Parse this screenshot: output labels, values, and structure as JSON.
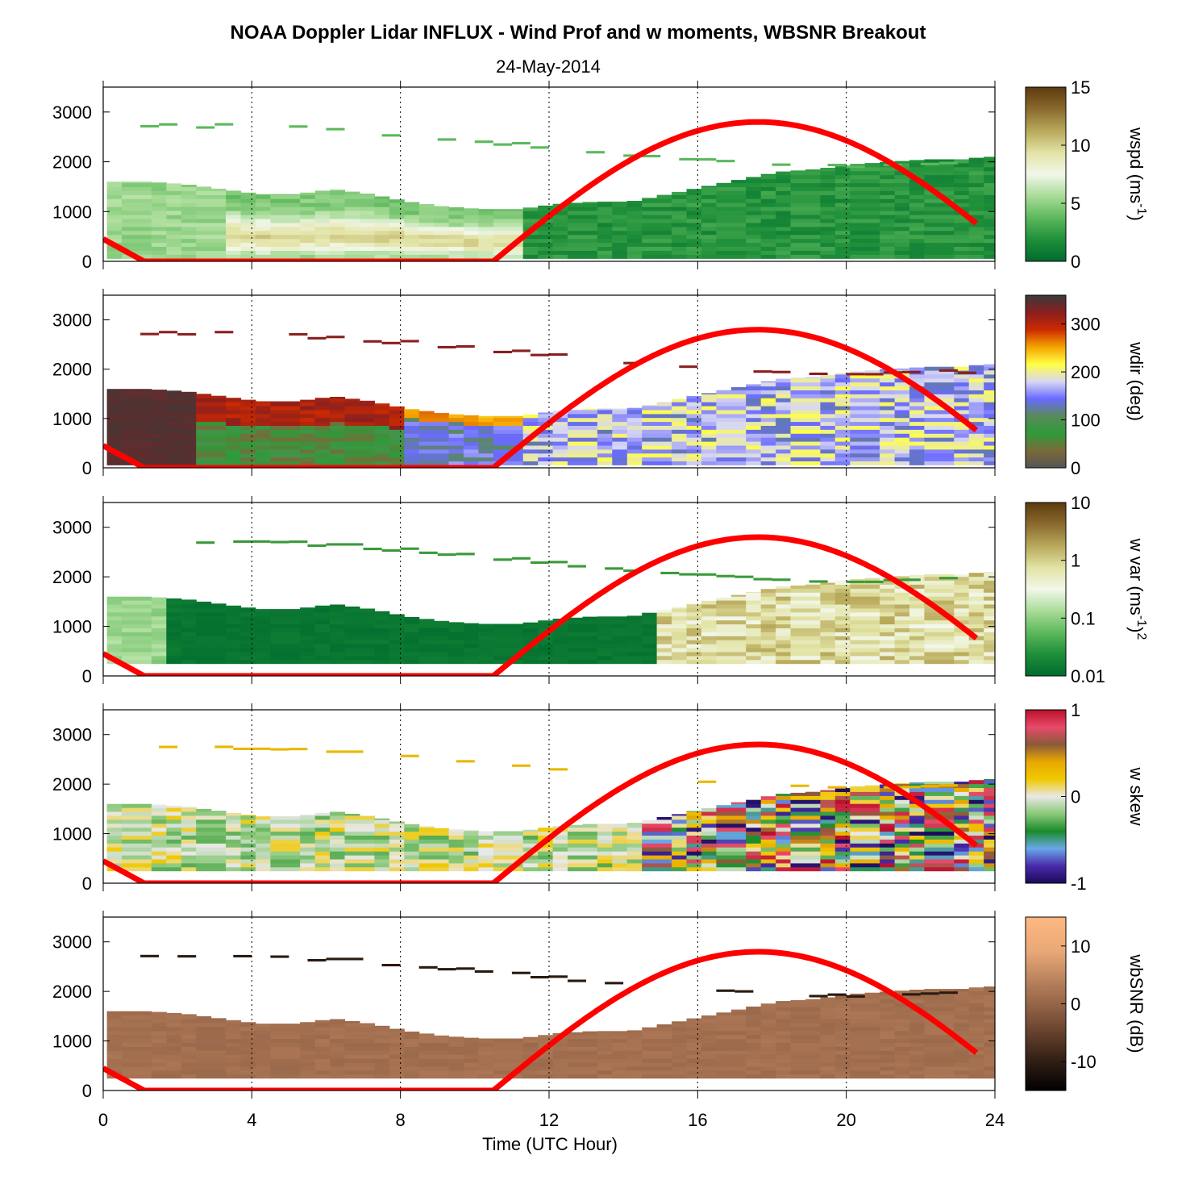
{
  "title": "NOAA Doppler Lidar INFLUX - Wind Prof and w moments, WBSNR Breakout",
  "subtitle": "24-May-2014",
  "xlabel": "Time (UTC Hour)",
  "colors": {
    "sun_curve": "#ff0000",
    "frame": "#000000",
    "grid": "#000000"
  },
  "chart_data": [
    {
      "type": "heatmap",
      "variable": "wspd",
      "colorbar_label": "wspd (ms-1)",
      "colorbar_label_parts": {
        "pre": "wspd (ms",
        "sup": "-1",
        "post": ")"
      },
      "colorbar_ticks": [
        "15",
        "10",
        "5",
        "0"
      ],
      "clim": [
        0,
        15
      ],
      "colormap": [
        "#006b2e",
        "#1f8f3a",
        "#5cb85c",
        "#a9dc98",
        "#f2f7ea",
        "#e2e3a4",
        "#b8a85a",
        "#8a6a2e",
        "#5c3a0d"
      ],
      "x": [
        0,
        1,
        2,
        3,
        4,
        5,
        6,
        7,
        8,
        9,
        10,
        11,
        12,
        13,
        14,
        15,
        16,
        17,
        18,
        19,
        20,
        21,
        22,
        23,
        23.5
      ],
      "boundary_layer_top_m": [
        1600,
        1600,
        1550,
        1450,
        1350,
        1350,
        1450,
        1350,
        1200,
        1100,
        1050,
        1050,
        1150,
        1200,
        1200,
        1350,
        1500,
        1650,
        1800,
        1850,
        1950,
        2000,
        2050,
        2050,
        2100
      ],
      "xlim": [
        0,
        24
      ],
      "ylim": [
        0,
        3500
      ],
      "xticks": [
        "0",
        "4",
        "8",
        "12",
        "16",
        "20",
        "24"
      ],
      "yticks": [
        "0",
        "1000",
        "2000",
        "3000"
      ],
      "sun_elevation_curve": true
    },
    {
      "type": "heatmap",
      "variable": "wdir",
      "colorbar_label": "wdir (deg)",
      "colorbar_ticks": [
        "300",
        "200",
        "100",
        "0"
      ],
      "clim": [
        0,
        360
      ],
      "colormap": [
        "#555555",
        "#7a6a3a",
        "#2f9a3a",
        "#5a8a5a",
        "#6a6aff",
        "#d8d8f2",
        "#ffff44",
        "#f4a400",
        "#cc2a00",
        "#8a1f1f",
        "#3a3a3a"
      ],
      "x": [
        0,
        1,
        2,
        3,
        4,
        5,
        6,
        7,
        8,
        9,
        10,
        11,
        12,
        13,
        14,
        15,
        16,
        17,
        18,
        19,
        20,
        21,
        22,
        23,
        23.5
      ],
      "boundary_layer_top_m": [
        1600,
        1600,
        1550,
        1450,
        1350,
        1350,
        1450,
        1350,
        1200,
        1100,
        1050,
        1050,
        1150,
        1200,
        1200,
        1350,
        1500,
        1650,
        1800,
        1850,
        1950,
        2000,
        2050,
        2050,
        2100
      ],
      "xlim": [
        0,
        24
      ],
      "ylim": [
        0,
        3500
      ],
      "xticks": [
        "0",
        "4",
        "8",
        "12",
        "16",
        "20",
        "24"
      ],
      "yticks": [
        "0",
        "1000",
        "2000",
        "3000"
      ],
      "sun_elevation_curve": true
    },
    {
      "type": "heatmap",
      "variable": "w var",
      "colorbar_label": "w var (ms-1)2",
      "colorbar_label_parts": {
        "pre": "w var (ms",
        "sup": "-1",
        "post": ")",
        "sup2": "2"
      },
      "colorbar_ticks": [
        "10",
        "1",
        "0.1",
        "0.01"
      ],
      "clim": [
        0.01,
        10
      ],
      "scale": "log",
      "colormap": [
        "#006b2e",
        "#1f8f3a",
        "#5cb85c",
        "#a9dc98",
        "#f2f7ea",
        "#e2e3a4",
        "#b8a85a",
        "#8a6a2e",
        "#5c3a0d"
      ],
      "x": [
        0,
        1,
        2,
        3,
        4,
        5,
        6,
        7,
        8,
        9,
        10,
        11,
        12,
        13,
        14,
        15,
        16,
        17,
        18,
        19,
        20,
        21,
        22,
        23,
        23.5
      ],
      "boundary_layer_top_m": [
        1600,
        1600,
        1550,
        1450,
        1350,
        1350,
        1450,
        1350,
        1200,
        1100,
        1050,
        1050,
        1150,
        1200,
        1200,
        1350,
        1500,
        1650,
        1800,
        1850,
        1950,
        2000,
        2050,
        2050,
        2100
      ],
      "xlim": [
        0,
        24
      ],
      "ylim": [
        0,
        3500
      ],
      "xticks": [
        "0",
        "4",
        "8",
        "12",
        "16",
        "20",
        "24"
      ],
      "yticks": [
        "0",
        "1000",
        "2000",
        "3000"
      ],
      "sun_elevation_curve": true
    },
    {
      "type": "heatmap",
      "variable": "w skew",
      "colorbar_label": "w skew",
      "colorbar_ticks": [
        "1",
        "0",
        "-1"
      ],
      "clim": [
        -1,
        1
      ],
      "colormap": [
        "#1a0a5a",
        "#4a2aaa",
        "#6aa8e8",
        "#1a8a2a",
        "#8ac878",
        "#e8e8e8",
        "#f0c800",
        "#e8a800",
        "#8a5a3a",
        "#e84a6a",
        "#b8102a"
      ],
      "x": [
        0,
        1,
        2,
        3,
        4,
        5,
        6,
        7,
        8,
        9,
        10,
        11,
        12,
        13,
        14,
        15,
        16,
        17,
        18,
        19,
        20,
        21,
        22,
        23,
        23.5
      ],
      "boundary_layer_top_m": [
        1600,
        1600,
        1550,
        1450,
        1350,
        1350,
        1450,
        1350,
        1200,
        1100,
        1050,
        1050,
        1150,
        1200,
        1200,
        1350,
        1500,
        1650,
        1800,
        1850,
        1950,
        2000,
        2050,
        2050,
        2100
      ],
      "xlim": [
        0,
        24
      ],
      "ylim": [
        0,
        3500
      ],
      "xticks": [
        "0",
        "4",
        "8",
        "12",
        "16",
        "20",
        "24"
      ],
      "yticks": [
        "0",
        "1000",
        "2000",
        "3000"
      ],
      "sun_elevation_curve": true
    },
    {
      "type": "heatmap",
      "variable": "wbSNR",
      "colorbar_label": "wbSNR (dB)",
      "colorbar_ticks": [
        "10",
        "0",
        "-10"
      ],
      "clim": [
        -15,
        15
      ],
      "colormap": [
        "#000000",
        "#3a2418",
        "#7a5038",
        "#b07a58",
        "#e8a878",
        "#ffb880"
      ],
      "x": [
        0,
        1,
        2,
        3,
        4,
        5,
        6,
        7,
        8,
        9,
        10,
        11,
        12,
        13,
        14,
        15,
        16,
        17,
        18,
        19,
        20,
        21,
        22,
        23,
        23.5
      ],
      "boundary_layer_top_m": [
        1600,
        1600,
        1550,
        1450,
        1350,
        1350,
        1450,
        1350,
        1200,
        1100,
        1050,
        1050,
        1150,
        1200,
        1200,
        1350,
        1500,
        1650,
        1800,
        1850,
        1950,
        2000,
        2050,
        2050,
        2100
      ],
      "xlim": [
        0,
        24
      ],
      "ylim": [
        0,
        3500
      ],
      "xticks": [
        "0",
        "4",
        "8",
        "12",
        "16",
        "20",
        "24"
      ],
      "yticks": [
        "0",
        "1000",
        "2000",
        "3000"
      ],
      "sun_elevation_curve": true
    }
  ]
}
